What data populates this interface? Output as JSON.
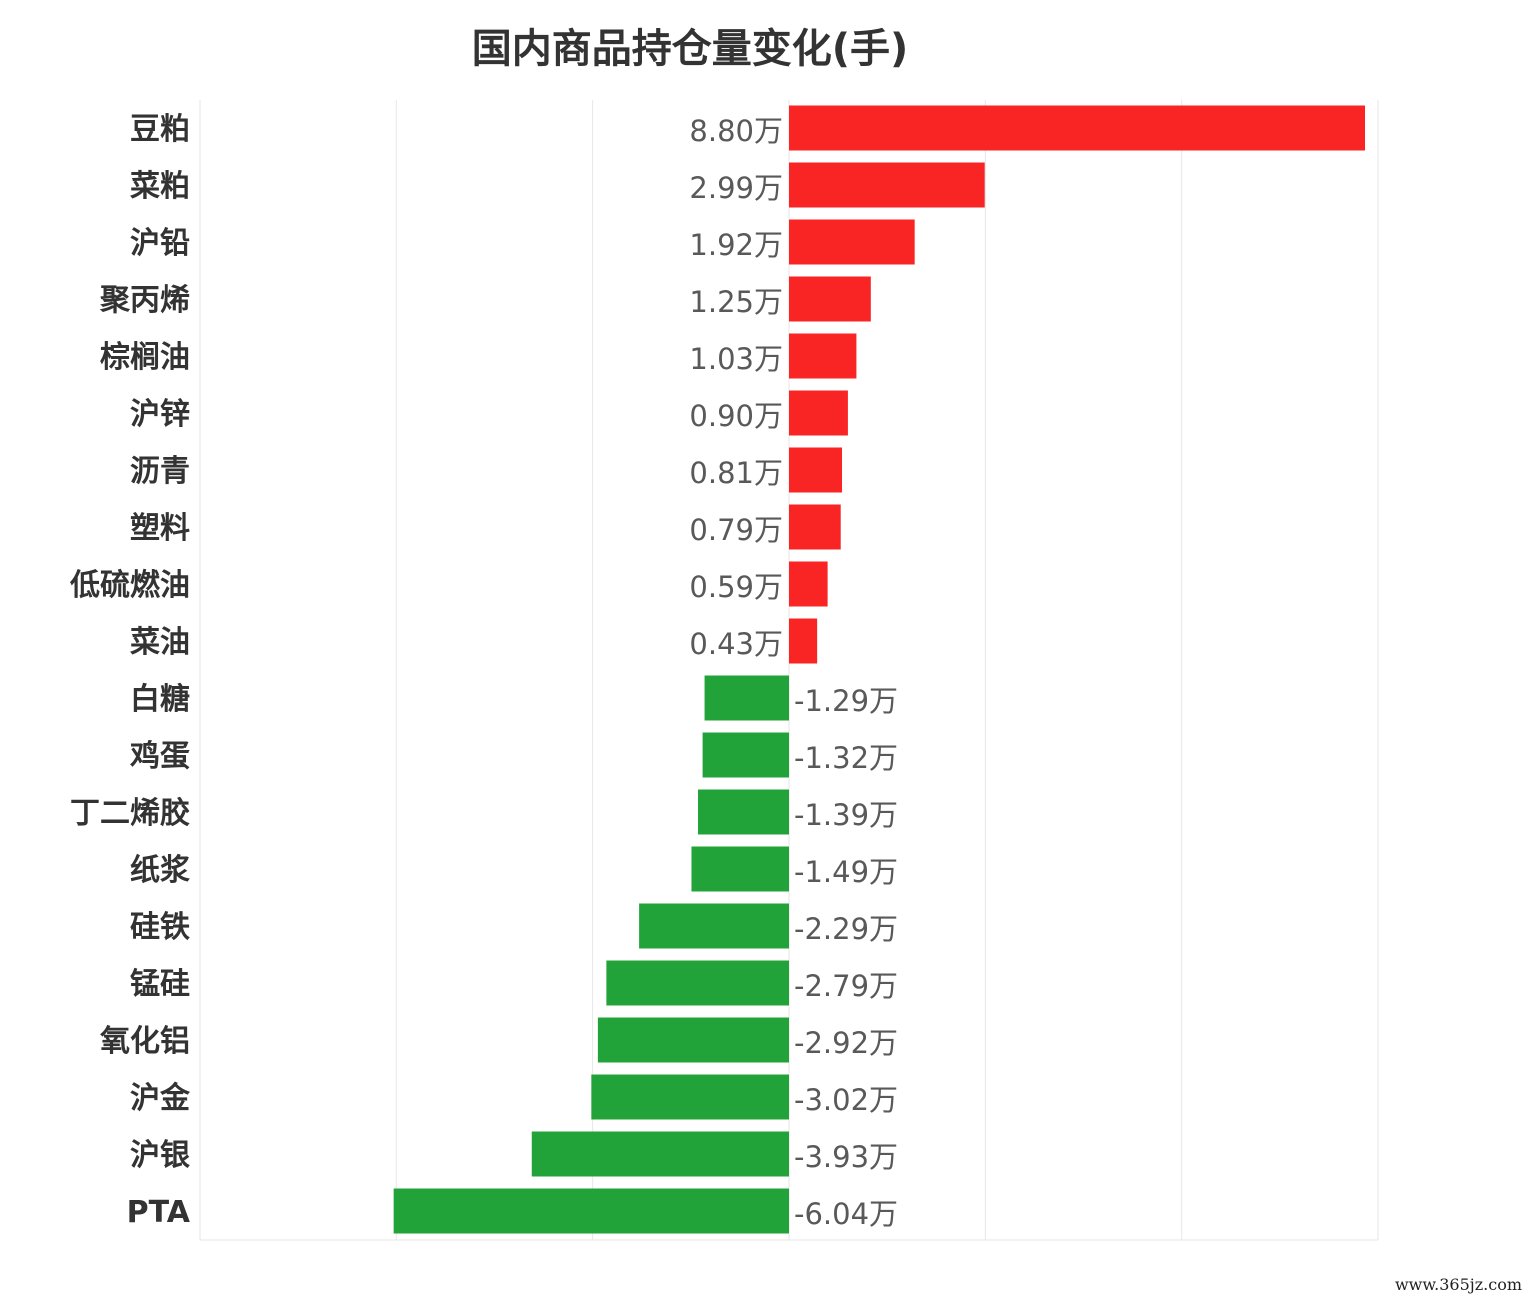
{
  "chart_data": {
    "type": "bar",
    "orientation": "horizontal",
    "title": "国内商品持仓量变化(手)",
    "categories": [
      "豆粕",
      "菜粕",
      "沪铅",
      "聚丙烯",
      "棕榈油",
      "沪锌",
      "沥青",
      "塑料",
      "低硫燃油",
      "菜油",
      "白糖",
      "鸡蛋",
      "丁二烯胶",
      "纸浆",
      "硅铁",
      "锰硅",
      "氧化铝",
      "沪金",
      "沪银",
      "PTA"
    ],
    "values": [
      8.8,
      2.99,
      1.92,
      1.25,
      1.03,
      0.9,
      0.81,
      0.79,
      0.59,
      0.43,
      -1.29,
      -1.32,
      -1.39,
      -1.49,
      -2.29,
      -2.79,
      -2.92,
      -3.02,
      -3.93,
      -6.04
    ],
    "value_labels": [
      "8.80万",
      "2.99万",
      "1.92万",
      "1.25万",
      "1.03万",
      "0.90万",
      "0.81万",
      "0.79万",
      "0.59万",
      "0.43万",
      "-1.29万",
      "-1.32万",
      "-1.39万",
      "-1.49万",
      "-2.29万",
      "-2.79万",
      "-2.92万",
      "-3.02万",
      "-3.93万",
      "-6.04万"
    ],
    "unit": "万",
    "xlim": [
      -9,
      9
    ],
    "grid": true,
    "positive_color": "#f92424",
    "negative_color": "#21a33a"
  },
  "watermark": "www.365jz.com"
}
